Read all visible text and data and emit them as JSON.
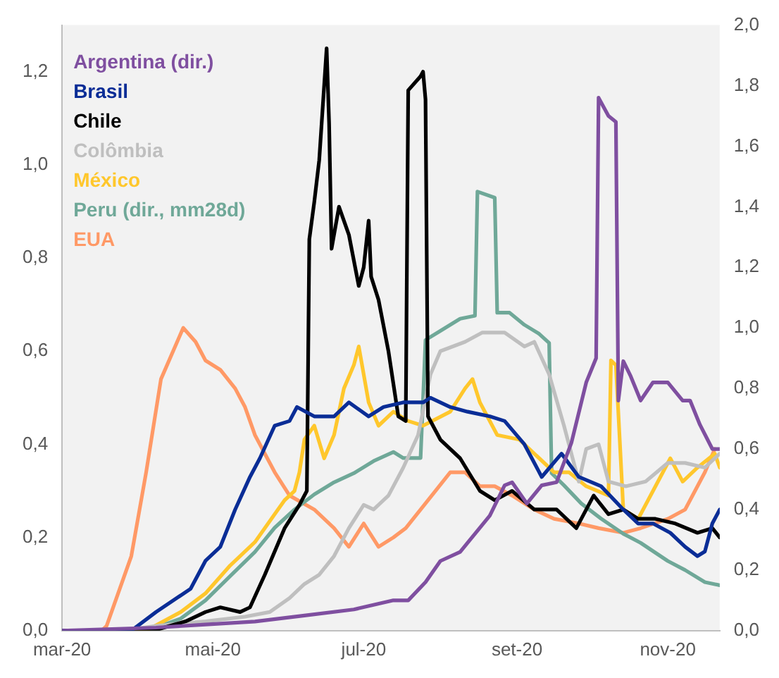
{
  "chart_data": {
    "type": "line",
    "xlim": [
      "2020-03-01",
      "2020-11-22"
    ],
    "xticks": [
      {
        "value": "2020-03-01",
        "label": "mar-20"
      },
      {
        "value": "2020-05-01",
        "label": "mai-20"
      },
      {
        "value": "2020-07-01",
        "label": "jul-20"
      },
      {
        "value": "2020-09-01",
        "label": "set-20"
      },
      {
        "value": "2020-11-01",
        "label": "nov-20"
      }
    ],
    "ylim": [
      0,
      1.3
    ],
    "yticks": [
      {
        "value": 0,
        "label": "0,0"
      },
      {
        "value": 0.2,
        "label": "0,2"
      },
      {
        "value": 0.4,
        "label": "0,4"
      },
      {
        "value": 0.6,
        "label": "0,6"
      },
      {
        "value": 0.8,
        "label": "0,8"
      },
      {
        "value": 1.0,
        "label": "1,0"
      },
      {
        "value": 1.2,
        "label": "1,2"
      }
    ],
    "y2lim": [
      0,
      2.0
    ],
    "y2ticks": [
      {
        "value": 0,
        "label": "0,0"
      },
      {
        "value": 0.2,
        "label": "0,2"
      },
      {
        "value": 0.4,
        "label": "0,4"
      },
      {
        "value": 0.6,
        "label": "0,6"
      },
      {
        "value": 0.8,
        "label": "0,8"
      },
      {
        "value": 1.0,
        "label": "1,0"
      },
      {
        "value": 1.2,
        "label": "1,2"
      },
      {
        "value": 1.4,
        "label": "1,4"
      },
      {
        "value": 1.6,
        "label": "1,6"
      },
      {
        "value": 1.8,
        "label": "1,8"
      },
      {
        "value": 2.0,
        "label": "2,0"
      }
    ],
    "grid": false,
    "legend": "top left",
    "marker": "none",
    "line_style": "solid",
    "series": [
      {
        "name": "Argentina (dir.)",
        "color": "#7f4fa0",
        "axis": "y2",
        "x": [
          "2020-03-01",
          "2020-04-08",
          "2020-04-28",
          "2020-05-18",
          "2020-06-07",
          "2020-06-27",
          "2020-07-13",
          "2020-07-19",
          "2020-07-26",
          "2020-08-01",
          "2020-08-09",
          "2020-08-15",
          "2020-08-21",
          "2020-08-27",
          "2020-08-30",
          "2020-09-05",
          "2020-09-11",
          "2020-09-17",
          "2020-09-23",
          "2020-09-29",
          "2020-10-03",
          "2020-10-04",
          "2020-10-08",
          "2020-10-11",
          "2020-10-12",
          "2020-10-14",
          "2020-10-17",
          "2020-10-21",
          "2020-10-26",
          "2020-11-01",
          "2020-11-07",
          "2020-11-10",
          "2020-11-14",
          "2020-11-19",
          "2020-11-22"
        ],
        "values": [
          0,
          0.01,
          0.02,
          0.03,
          0.05,
          0.07,
          0.1,
          0.1,
          0.16,
          0.23,
          0.26,
          0.32,
          0.38,
          0.48,
          0.49,
          0.42,
          0.48,
          0.49,
          0.62,
          0.82,
          0.9,
          1.76,
          1.7,
          1.68,
          0.76,
          0.89,
          0.84,
          0.76,
          0.82,
          0.82,
          0.76,
          0.76,
          0.68,
          0.6,
          0.6
        ]
      },
      {
        "name": "Brasil",
        "color": "#0a2d96",
        "x": [
          "2020-03-01",
          "2020-03-29",
          "2020-04-08",
          "2020-04-22",
          "2020-04-28",
          "2020-05-04",
          "2020-05-10",
          "2020-05-16",
          "2020-05-20",
          "2020-05-26",
          "2020-06-01",
          "2020-06-04",
          "2020-06-11",
          "2020-06-19",
          "2020-06-25",
          "2020-07-03",
          "2020-07-09",
          "2020-07-17",
          "2020-07-25",
          "2020-07-28",
          "2020-08-05",
          "2020-08-12",
          "2020-08-21",
          "2020-08-27",
          "2020-09-04",
          "2020-09-11",
          "2020-09-19",
          "2020-09-26",
          "2020-10-05",
          "2020-10-14",
          "2020-10-20",
          "2020-10-26",
          "2020-11-02",
          "2020-11-08",
          "2020-11-13",
          "2020-11-16",
          "2020-11-19",
          "2020-11-22"
        ],
        "values": [
          0,
          0,
          0.04,
          0.09,
          0.15,
          0.18,
          0.26,
          0.33,
          0.37,
          0.44,
          0.45,
          0.48,
          0.46,
          0.46,
          0.49,
          0.46,
          0.48,
          0.49,
          0.49,
          0.5,
          0.48,
          0.47,
          0.46,
          0.45,
          0.4,
          0.33,
          0.38,
          0.33,
          0.31,
          0.26,
          0.23,
          0.23,
          0.21,
          0.18,
          0.16,
          0.17,
          0.23,
          0.26
        ]
      },
      {
        "name": "Chile",
        "color": "#000000",
        "x": [
          "2020-03-01",
          "2020-04-07",
          "2020-04-20",
          "2020-04-28",
          "2020-05-04",
          "2020-05-12",
          "2020-05-16",
          "2020-05-22",
          "2020-05-30",
          "2020-06-05",
          "2020-06-08",
          "2020-06-09",
          "2020-06-11",
          "2020-06-13",
          "2020-06-16",
          "2020-06-17",
          "2020-06-18",
          "2020-06-21",
          "2020-06-25",
          "2020-06-29",
          "2020-07-01",
          "2020-07-03",
          "2020-07-04",
          "2020-07-07",
          "2020-07-11",
          "2020-07-15",
          "2020-07-18",
          "2020-07-19",
          "2020-07-24",
          "2020-07-25",
          "2020-07-26",
          "2020-07-27",
          "2020-08-01",
          "2020-08-09",
          "2020-08-17",
          "2020-08-23",
          "2020-08-30",
          "2020-09-08",
          "2020-09-17",
          "2020-09-25",
          "2020-10-02",
          "2020-10-08",
          "2020-10-14",
          "2020-10-20",
          "2020-10-27",
          "2020-11-04",
          "2020-11-13",
          "2020-11-19",
          "2020-11-22"
        ],
        "values": [
          0,
          0,
          0.02,
          0.04,
          0.05,
          0.04,
          0.05,
          0.12,
          0.22,
          0.27,
          0.3,
          0.84,
          0.92,
          1.01,
          1.25,
          1.09,
          0.82,
          0.91,
          0.85,
          0.74,
          0.78,
          0.88,
          0.76,
          0.71,
          0.6,
          0.46,
          0.45,
          1.16,
          1.19,
          1.2,
          1.14,
          0.46,
          0.41,
          0.37,
          0.3,
          0.28,
          0.3,
          0.26,
          0.26,
          0.22,
          0.29,
          0.25,
          0.26,
          0.24,
          0.24,
          0.23,
          0.21,
          0.22,
          0.2
        ]
      },
      {
        "name": "Colômbia",
        "color": "#bfbfbf",
        "x": [
          "2020-03-01",
          "2020-03-26",
          "2020-04-08",
          "2020-04-28",
          "2020-05-14",
          "2020-05-24",
          "2020-06-01",
          "2020-06-07",
          "2020-06-13",
          "2020-06-19",
          "2020-06-25",
          "2020-07-01",
          "2020-07-05",
          "2020-07-11",
          "2020-07-17",
          "2020-07-23",
          "2020-07-28",
          "2020-08-01",
          "2020-08-11",
          "2020-08-18",
          "2020-08-27",
          "2020-09-04",
          "2020-09-08",
          "2020-09-14",
          "2020-09-20",
          "2020-09-26",
          "2020-09-29",
          "2020-10-04",
          "2020-10-08",
          "2020-10-15",
          "2020-10-23",
          "2020-11-01",
          "2020-11-08",
          "2020-11-16",
          "2020-11-22"
        ],
        "values": [
          0,
          0,
          0.01,
          0.02,
          0.03,
          0.04,
          0.07,
          0.1,
          0.12,
          0.16,
          0.22,
          0.27,
          0.26,
          0.29,
          0.35,
          0.42,
          0.55,
          0.6,
          0.62,
          0.64,
          0.64,
          0.61,
          0.62,
          0.55,
          0.44,
          0.32,
          0.39,
          0.4,
          0.32,
          0.31,
          0.32,
          0.36,
          0.36,
          0.35,
          0.38
        ]
      },
      {
        "name": "México",
        "color": "#ffc72c",
        "x": [
          "2020-03-01",
          "2020-04-04",
          "2020-04-18",
          "2020-04-28",
          "2020-05-08",
          "2020-05-18",
          "2020-05-26",
          "2020-05-30",
          "2020-06-03",
          "2020-06-05",
          "2020-06-07",
          "2020-06-11",
          "2020-06-15",
          "2020-06-19",
          "2020-06-23",
          "2020-06-27",
          "2020-06-29",
          "2020-07-03",
          "2020-07-07",
          "2020-07-13",
          "2020-07-19",
          "2020-07-25",
          "2020-08-05",
          "2020-08-11",
          "2020-08-14",
          "2020-08-17",
          "2020-08-24",
          "2020-09-02",
          "2020-09-10",
          "2020-09-16",
          "2020-09-22",
          "2020-09-29",
          "2020-10-08",
          "2020-10-09",
          "2020-10-11",
          "2020-10-14",
          "2020-10-20",
          "2020-10-27",
          "2020-11-02",
          "2020-11-07",
          "2020-11-13",
          "2020-11-20",
          "2020-11-22"
        ],
        "values": [
          0,
          0,
          0.04,
          0.08,
          0.14,
          0.19,
          0.25,
          0.28,
          0.3,
          0.34,
          0.41,
          0.44,
          0.37,
          0.42,
          0.52,
          0.57,
          0.61,
          0.49,
          0.44,
          0.47,
          0.45,
          0.44,
          0.47,
          0.52,
          0.54,
          0.49,
          0.42,
          0.41,
          0.37,
          0.34,
          0.34,
          0.31,
          0.29,
          0.58,
          0.57,
          0.26,
          0.24,
          0.31,
          0.37,
          0.32,
          0.35,
          0.38,
          0.35
        ]
      },
      {
        "name": "Peru (dir., mm28d)",
        "color": "#6fa898",
        "axis": "y2",
        "x": [
          "2020-03-01",
          "2020-03-31",
          "2020-04-08",
          "2020-04-18",
          "2020-04-28",
          "2020-05-08",
          "2020-05-18",
          "2020-05-26",
          "2020-06-03",
          "2020-06-11",
          "2020-06-19",
          "2020-06-27",
          "2020-07-05",
          "2020-07-13",
          "2020-07-17",
          "2020-07-24",
          "2020-07-26",
          "2020-08-01",
          "2020-08-09",
          "2020-08-15",
          "2020-08-16",
          "2020-08-23",
          "2020-08-24",
          "2020-08-29",
          "2020-09-04",
          "2020-09-10",
          "2020-09-14",
          "2020-09-15",
          "2020-09-20",
          "2020-09-27",
          "2020-10-05",
          "2020-10-14",
          "2020-10-21",
          "2020-11-01",
          "2020-11-08",
          "2020-11-16",
          "2020-11-22"
        ],
        "values": [
          0,
          0,
          0.01,
          0.04,
          0.1,
          0.18,
          0.26,
          0.34,
          0.4,
          0.45,
          0.49,
          0.52,
          0.56,
          0.59,
          0.57,
          0.57,
          0.96,
          0.99,
          1.03,
          1.04,
          1.45,
          1.43,
          1.05,
          1.05,
          1.01,
          0.98,
          0.95,
          0.52,
          0.48,
          0.42,
          0.37,
          0.32,
          0.29,
          0.23,
          0.2,
          0.16,
          0.15
        ]
      },
      {
        "name": "EUA",
        "color": "#ff9966",
        "x": [
          "2020-03-01",
          "2020-03-17",
          "2020-03-19",
          "2020-03-29",
          "2020-04-04",
          "2020-04-10",
          "2020-04-19",
          "2020-04-24",
          "2020-04-28",
          "2020-05-04",
          "2020-05-10",
          "2020-05-14",
          "2020-05-18",
          "2020-05-26",
          "2020-06-01",
          "2020-06-11",
          "2020-06-19",
          "2020-06-25",
          "2020-07-01",
          "2020-07-07",
          "2020-07-13",
          "2020-07-18",
          "2020-07-30",
          "2020-08-05",
          "2020-08-11",
          "2020-08-17",
          "2020-08-23",
          "2020-08-30",
          "2020-09-08",
          "2020-09-16",
          "2020-09-26",
          "2020-10-04",
          "2020-10-14",
          "2020-10-21",
          "2020-11-01",
          "2020-11-08",
          "2020-11-16",
          "2020-11-20"
        ],
        "values": [
          0,
          0,
          0.01,
          0.16,
          0.34,
          0.54,
          0.65,
          0.62,
          0.58,
          0.56,
          0.52,
          0.48,
          0.42,
          0.34,
          0.29,
          0.26,
          0.22,
          0.18,
          0.23,
          0.18,
          0.2,
          0.22,
          0.3,
          0.34,
          0.34,
          0.31,
          0.31,
          0.29,
          0.26,
          0.24,
          0.23,
          0.22,
          0.21,
          0.22,
          0.24,
          0.26,
          0.34,
          0.39
        ]
      }
    ]
  }
}
